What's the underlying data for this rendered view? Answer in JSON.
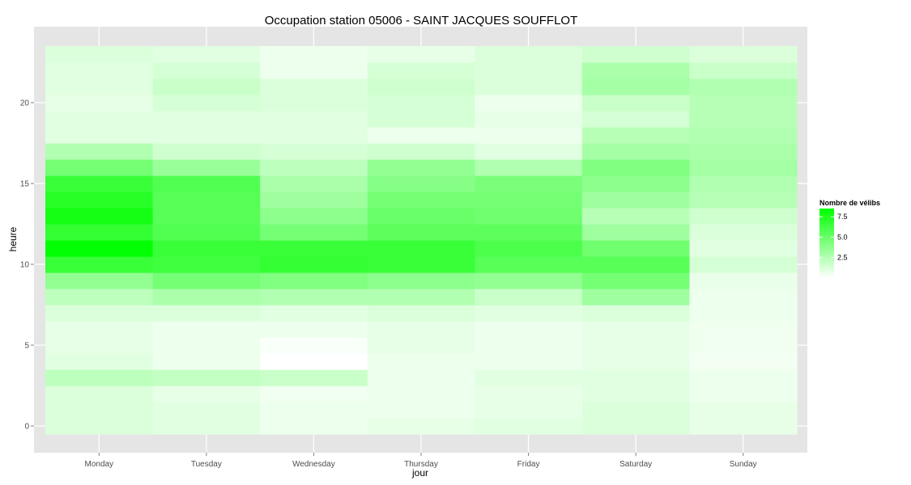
{
  "chart_data": {
    "type": "heatmap",
    "title": "Occupation station 05006 - SAINT JACQUES SOUFFLOT",
    "xlabel": "jour",
    "ylabel": "heure",
    "x_categories": [
      "Monday",
      "Tuesday",
      "Wednesday",
      "Thursday",
      "Friday",
      "Saturday",
      "Sunday"
    ],
    "y_values": [
      0,
      1,
      2,
      3,
      4,
      5,
      6,
      7,
      8,
      9,
      10,
      11,
      12,
      13,
      14,
      15,
      16,
      17,
      18,
      19,
      20,
      21,
      22,
      23
    ],
    "y_ticks": [
      0,
      5,
      10,
      15,
      20
    ],
    "ylim": [
      -0.5,
      23.5
    ],
    "legend": {
      "title": "Nombre de vélibs",
      "ticks": [
        2.5,
        5.0,
        7.5
      ],
      "tick_labels": [
        "2.5",
        "5.0",
        "7.5"
      ],
      "range": [
        0,
        8.5
      ],
      "low_color": "#ffffff",
      "high_color": "#00ff00"
    },
    "values": [
      [
        1.2,
        1.0,
        0.6,
        0.8,
        1.0,
        1.2,
        0.8
      ],
      [
        1.2,
        1.0,
        0.6,
        0.6,
        0.8,
        1.2,
        0.8
      ],
      [
        1.2,
        0.8,
        0.5,
        0.6,
        0.8,
        1.0,
        0.6
      ],
      [
        2.2,
        2.0,
        1.8,
        0.6,
        1.0,
        1.0,
        0.6
      ],
      [
        1.0,
        0.6,
        0.0,
        0.6,
        0.6,
        0.8,
        0.4
      ],
      [
        0.8,
        0.6,
        0.2,
        0.8,
        0.6,
        0.8,
        0.5
      ],
      [
        0.8,
        0.6,
        0.6,
        0.8,
        0.6,
        0.8,
        0.5
      ],
      [
        1.2,
        1.2,
        1.0,
        1.2,
        1.0,
        1.2,
        0.6
      ],
      [
        2.2,
        2.8,
        2.6,
        2.6,
        1.8,
        3.2,
        0.6
      ],
      [
        3.6,
        4.6,
        4.2,
        3.8,
        3.6,
        4.6,
        0.7
      ],
      [
        6.6,
        6.4,
        6.8,
        6.6,
        5.6,
        5.6,
        1.4
      ],
      [
        8.4,
        6.6,
        6.6,
        6.6,
        6.0,
        4.8,
        1.0
      ],
      [
        6.8,
        5.8,
        4.6,
        5.4,
        5.4,
        3.2,
        1.2
      ],
      [
        7.8,
        5.6,
        3.8,
        5.0,
        4.8,
        2.4,
        1.6
      ],
      [
        7.2,
        5.6,
        3.2,
        4.6,
        4.6,
        3.2,
        2.4
      ],
      [
        6.6,
        5.8,
        2.8,
        4.0,
        4.4,
        3.8,
        2.6
      ],
      [
        4.6,
        3.4,
        2.2,
        3.6,
        2.6,
        4.2,
        3.0
      ],
      [
        2.6,
        1.6,
        1.4,
        1.6,
        1.0,
        3.0,
        2.8
      ],
      [
        1.0,
        1.0,
        1.0,
        0.6,
        0.6,
        2.4,
        2.6
      ],
      [
        1.0,
        1.0,
        1.0,
        1.4,
        0.8,
        1.4,
        2.4
      ],
      [
        0.8,
        1.4,
        1.2,
        1.4,
        0.6,
        1.8,
        2.4
      ],
      [
        1.0,
        1.8,
        1.2,
        1.6,
        1.2,
        3.0,
        2.6
      ],
      [
        1.0,
        1.4,
        0.6,
        1.4,
        1.2,
        2.8,
        1.8
      ],
      [
        1.2,
        1.0,
        0.6,
        0.8,
        1.2,
        1.6,
        1.2
      ]
    ]
  }
}
